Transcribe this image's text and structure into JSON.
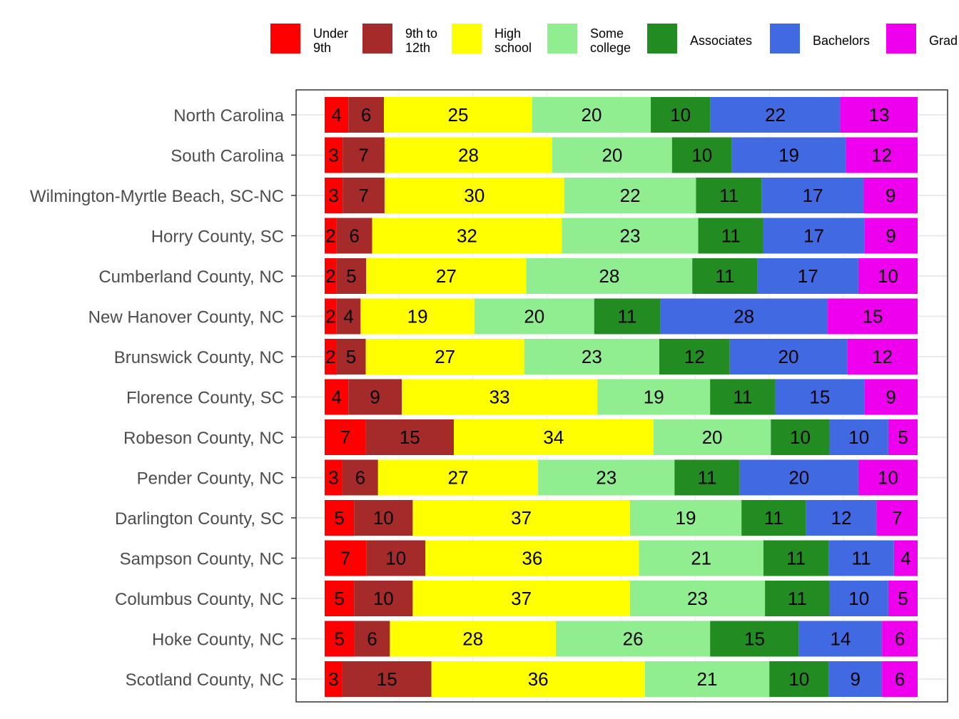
{
  "chart_data": {
    "type": "bar",
    "orientation": "horizontal",
    "stacked": "percent",
    "legend_position": "top",
    "grid": true,
    "xlim": [
      0,
      100
    ],
    "categories": [
      "North Carolina",
      "South Carolina",
      "Wilmington-Myrtle Beach, SC-NC",
      "Horry County, SC",
      "Cumberland County, NC",
      "New Hanover County, NC",
      "Brunswick County, NC",
      "Florence County, SC",
      "Robeson County, NC",
      "Pender County, NC",
      "Darlington County, SC",
      "Sampson County, NC",
      "Columbus County, NC",
      "Hoke County, NC",
      "Scotland County, NC"
    ],
    "series": [
      {
        "name": "Under 9th",
        "legend_lines": [
          "Under",
          "9th"
        ],
        "color": "#ff0000",
        "values": [
          4,
          3,
          3,
          2,
          2,
          2,
          2,
          4,
          7,
          3,
          5,
          7,
          5,
          5,
          3
        ]
      },
      {
        "name": "9th to 12th",
        "legend_lines": [
          "9th to",
          "12th"
        ],
        "color": "#a52a2a",
        "values": [
          6,
          7,
          7,
          6,
          5,
          4,
          5,
          9,
          15,
          6,
          10,
          10,
          10,
          6,
          15
        ]
      },
      {
        "name": "High school",
        "legend_lines": [
          "High",
          "school"
        ],
        "color": "#ffff00",
        "values": [
          25,
          28,
          30,
          32,
          27,
          19,
          27,
          33,
          34,
          27,
          37,
          36,
          37,
          28,
          36
        ]
      },
      {
        "name": "Some college",
        "legend_lines": [
          "Some",
          "college"
        ],
        "color": "#90ee90",
        "values": [
          20,
          20,
          22,
          23,
          28,
          20,
          23,
          19,
          20,
          23,
          19,
          21,
          23,
          26,
          21
        ]
      },
      {
        "name": "Associates",
        "legend_lines": [
          "Associates"
        ],
        "color": "#228b22",
        "values": [
          10,
          10,
          11,
          11,
          11,
          11,
          12,
          11,
          10,
          11,
          11,
          11,
          11,
          15,
          10
        ]
      },
      {
        "name": "Bachelors",
        "legend_lines": [
          "Bachelors"
        ],
        "color": "#4169e1",
        "values": [
          22,
          19,
          17,
          17,
          17,
          28,
          20,
          15,
          10,
          20,
          12,
          11,
          10,
          14,
          9
        ]
      },
      {
        "name": "Grad",
        "legend_lines": [
          "Grad"
        ],
        "color": "#ee00ee",
        "values": [
          13,
          12,
          9,
          9,
          10,
          15,
          12,
          9,
          5,
          10,
          7,
          4,
          5,
          6,
          6
        ]
      }
    ]
  }
}
